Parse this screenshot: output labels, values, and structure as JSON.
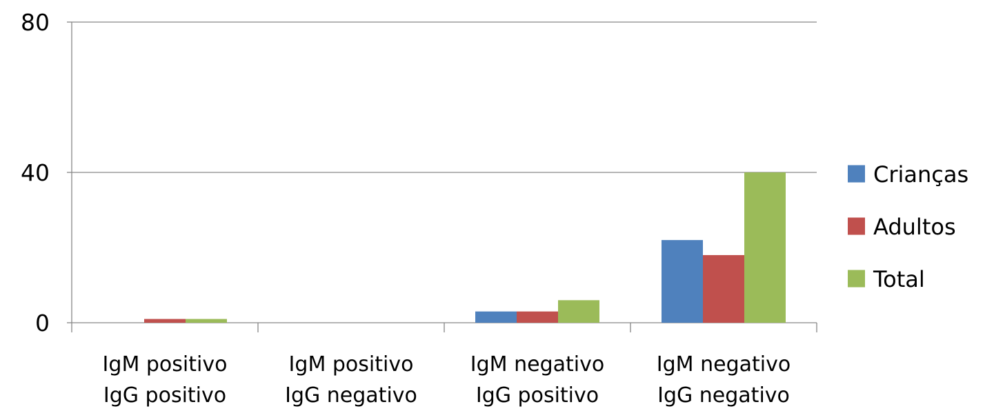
{
  "chart_data": {
    "type": "bar",
    "categories": [
      [
        "IgM positivo",
        "IgG positivo"
      ],
      [
        "IgM positivo",
        "IgG negativo"
      ],
      [
        "IgM negativo",
        "IgG positivo"
      ],
      [
        "IgM negativo",
        "IgG negativo"
      ]
    ],
    "series": [
      {
        "name": "Crianças",
        "color": "#4F81BD",
        "values": [
          0,
          0,
          3,
          22
        ]
      },
      {
        "name": "Adultos",
        "color": "#C0504D",
        "values": [
          1,
          0,
          3,
          18
        ]
      },
      {
        "name": "Total",
        "color": "#9BBB59",
        "values": [
          1,
          0,
          6,
          40
        ]
      }
    ],
    "ylim": [
      0,
      80
    ],
    "yticks": [
      "0",
      "40",
      "80"
    ],
    "grid": true,
    "legend_position": "right"
  }
}
